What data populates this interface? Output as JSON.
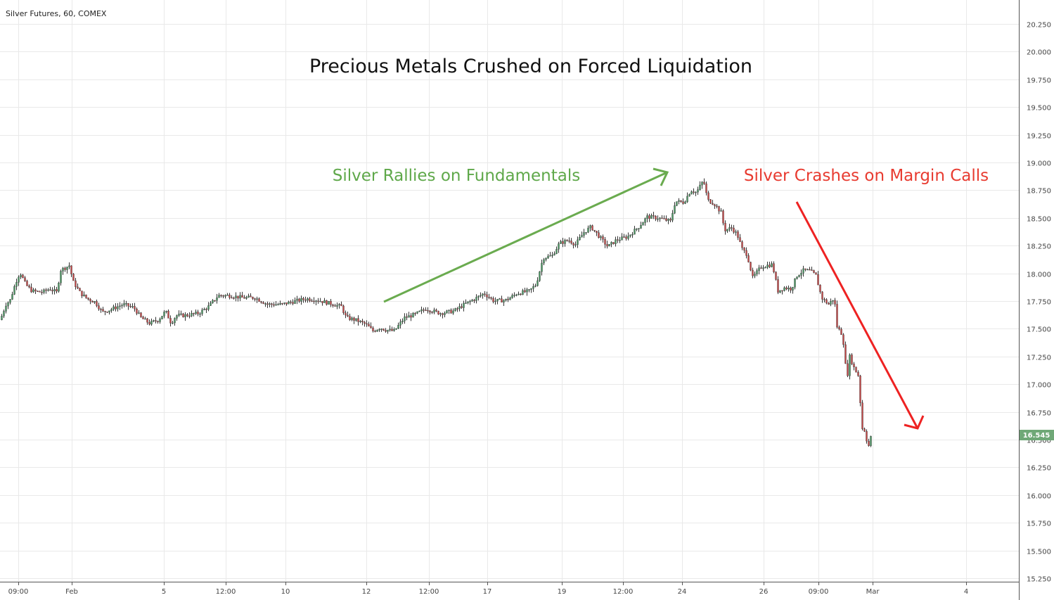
{
  "header": {
    "symbol": "Silver Futures, 60, COMEX"
  },
  "colors": {
    "up": "#4c9a64",
    "down": "#c94848",
    "wick": "#333333",
    "arrow_up": "#6aab4f",
    "arrow_down": "#ee2222",
    "annot_up": "#5fa84a",
    "annot_down": "#e83b30",
    "price_tag": "#6fa877"
  },
  "chart_data": {
    "type": "candlestick",
    "title": "Precious Metals Crushed on Forced Liquidation",
    "ylim": [
      15.25,
      20.25
    ],
    "yticks": [
      "15.250",
      "15.500",
      "15.750",
      "16.000",
      "16.250",
      "16.500",
      "16.750",
      "17.000",
      "17.250",
      "17.500",
      "17.750",
      "18.000",
      "18.250",
      "18.500",
      "18.750",
      "19.000",
      "19.250",
      "19.500",
      "19.750",
      "20.000",
      "20.250"
    ],
    "xticks": [
      "09:00",
      "Feb",
      "5",
      "12:00",
      "10",
      "12",
      "12:00",
      "17",
      "19",
      "12:00",
      "24",
      "26",
      "09:00",
      "Mar",
      "4"
    ],
    "last_price": "16.545",
    "price_path": [
      [
        0,
        17.58
      ],
      [
        8,
        17.72
      ],
      [
        14,
        17.76
      ],
      [
        22,
        17.92
      ],
      [
        28,
        18.01
      ],
      [
        36,
        17.9
      ],
      [
        45,
        17.84
      ],
      [
        60,
        17.83
      ],
      [
        70,
        17.86
      ],
      [
        80,
        17.83
      ],
      [
        86,
        18.03
      ],
      [
        98,
        18.07
      ],
      [
        104,
        17.92
      ],
      [
        114,
        17.82
      ],
      [
        124,
        17.77
      ],
      [
        135,
        17.74
      ],
      [
        145,
        17.65
      ],
      [
        155,
        17.67
      ],
      [
        175,
        17.72
      ],
      [
        190,
        17.69
      ],
      [
        200,
        17.6
      ],
      [
        212,
        17.55
      ],
      [
        225,
        17.58
      ],
      [
        235,
        17.66
      ],
      [
        243,
        17.55
      ],
      [
        250,
        17.62
      ],
      [
        262,
        17.62
      ],
      [
        282,
        17.64
      ],
      [
        296,
        17.7
      ],
      [
        310,
        17.8
      ],
      [
        325,
        17.8
      ],
      [
        345,
        17.78
      ],
      [
        362,
        17.78
      ],
      [
        380,
        17.72
      ],
      [
        400,
        17.72
      ],
      [
        420,
        17.75
      ],
      [
        435,
        17.77
      ],
      [
        450,
        17.76
      ],
      [
        468,
        17.73
      ],
      [
        485,
        17.7
      ],
      [
        492,
        17.6
      ],
      [
        505,
        17.58
      ],
      [
        520,
        17.54
      ],
      [
        530,
        17.48
      ],
      [
        540,
        17.51
      ],
      [
        548,
        17.49
      ],
      [
        560,
        17.48
      ],
      [
        575,
        17.6
      ],
      [
        590,
        17.63
      ],
      [
        605,
        17.68
      ],
      [
        625,
        17.64
      ],
      [
        645,
        17.66
      ],
      [
        660,
        17.72
      ],
      [
        675,
        17.77
      ],
      [
        688,
        17.82
      ],
      [
        702,
        17.75
      ],
      [
        720,
        17.76
      ],
      [
        735,
        17.82
      ],
      [
        752,
        17.84
      ],
      [
        762,
        17.9
      ],
      [
        772,
        18.14
      ],
      [
        785,
        18.16
      ],
      [
        795,
        18.27
      ],
      [
        808,
        18.3
      ],
      [
        818,
        18.26
      ],
      [
        830,
        18.37
      ],
      [
        840,
        18.42
      ],
      [
        852,
        18.33
      ],
      [
        864,
        18.24
      ],
      [
        876,
        18.3
      ],
      [
        892,
        18.33
      ],
      [
        908,
        18.42
      ],
      [
        920,
        18.51
      ],
      [
        935,
        18.5
      ],
      [
        953,
        18.47
      ],
      [
        960,
        18.65
      ],
      [
        972,
        18.64
      ],
      [
        982,
        18.75
      ],
      [
        990,
        18.73
      ],
      [
        1000,
        18.84
      ],
      [
        1006,
        18.66
      ],
      [
        1015,
        18.63
      ],
      [
        1025,
        18.55
      ],
      [
        1030,
        18.39
      ],
      [
        1040,
        18.41
      ],
      [
        1048,
        18.35
      ],
      [
        1055,
        18.22
      ],
      [
        1062,
        18.17
      ],
      [
        1070,
        17.96
      ],
      [
        1082,
        18.06
      ],
      [
        1098,
        18.08
      ],
      [
        1106,
        17.84
      ],
      [
        1115,
        17.87
      ],
      [
        1125,
        17.86
      ],
      [
        1133,
        17.98
      ],
      [
        1143,
        18.03
      ],
      [
        1152,
        18.02
      ],
      [
        1160,
        17.98
      ],
      [
        1168,
        17.78
      ],
      [
        1178,
        17.72
      ],
      [
        1186,
        17.78
      ],
      [
        1190,
        17.52
      ],
      [
        1198,
        17.44
      ],
      [
        1204,
        17.04
      ],
      [
        1208,
        17.25
      ],
      [
        1214,
        17.15
      ],
      [
        1220,
        17.08
      ],
      [
        1226,
        16.6
      ],
      [
        1230,
        16.58
      ],
      [
        1234,
        16.42
      ],
      [
        1239,
        16.545
      ]
    ]
  },
  "annotations": {
    "rally": "Silver Rallies on Fundamentals",
    "crash": "Silver Crashes on Margin Calls"
  }
}
